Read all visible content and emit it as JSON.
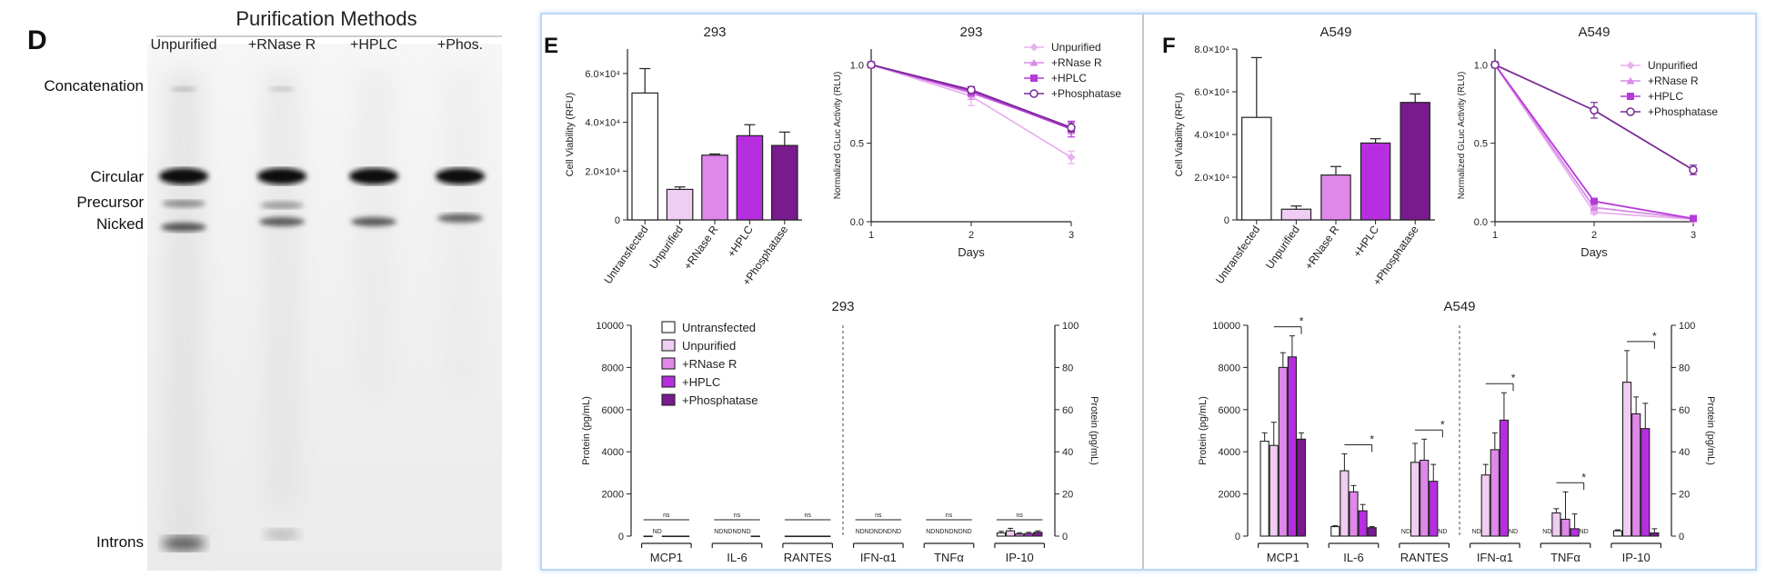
{
  "colors": {
    "Untransfected": "#ffffff",
    "Unpurified": "#f0cdf3",
    "+RNase R": "#df88ea",
    "+HPLC": "#b62ee0",
    "+Phosphatase": "#7a1a8f",
    "line_unpurified": "#e8b2ee",
    "line_rnase": "#d988e6",
    "line_hplc": "#b53ad9",
    "line_phos": "#7a2b93"
  },
  "panel_d": {
    "letter": "D",
    "title": "Purification Methods",
    "lanes": [
      "Unpurified",
      "+RNase R",
      "+HPLC",
      "+Phos."
    ],
    "band_labels": [
      "Concatenation",
      "Circular",
      "Precursor",
      "Nicked",
      "Introns"
    ]
  },
  "panel_e": {
    "letter": "E"
  },
  "panel_f": {
    "letter": "F"
  },
  "chart_data": [
    {
      "id": "e_viability",
      "type": "bar",
      "title": "293",
      "ylabel": "Cell Viability (RFU)",
      "ylim": [
        0,
        70000
      ],
      "ticks": [
        0,
        20000,
        40000,
        60000
      ],
      "tick_labels": [
        "0",
        "2.0×10⁴",
        "4.0×10⁴",
        "6.0×10⁴"
      ],
      "categories": [
        "Untransfected",
        "Unpurified",
        "+RNase R",
        "+HPLC",
        "+Phosphatase"
      ],
      "values": [
        52000,
        12500,
        26500,
        34500,
        30500
      ],
      "errors": [
        10000,
        1000,
        500,
        4500,
        5500
      ]
    },
    {
      "id": "e_gluc",
      "type": "line",
      "title": "293",
      "ylabel": "Normalized GLuc Activity (RLU)",
      "xlabel": "Days",
      "x": [
        1,
        2,
        3
      ],
      "ylim": [
        0,
        1.1
      ],
      "yticks": [
        0.0,
        0.5,
        1.0
      ],
      "series": [
        {
          "name": "Unpurified",
          "values": [
            1.0,
            0.8,
            0.41
          ],
          "errors": [
            0.0,
            0.06,
            0.04
          ]
        },
        {
          "name": "+RNase R",
          "values": [
            1.0,
            0.82,
            0.6
          ],
          "errors": [
            0.0,
            0.04,
            0.04
          ]
        },
        {
          "name": "+HPLC",
          "values": [
            1.0,
            0.83,
            0.59
          ],
          "errors": [
            0.0,
            0.03,
            0.05
          ]
        },
        {
          "name": "+Phosphatase",
          "values": [
            1.0,
            0.84,
            0.6
          ],
          "errors": [
            0.0,
            0.02,
            0.03
          ]
        }
      ]
    },
    {
      "id": "e_cytokine",
      "type": "bar",
      "title": "293",
      "ylabel": "Protein (pg/mL)",
      "ylabel_right": "Protein (pg/mL)",
      "ylim": [
        0,
        10000
      ],
      "yticks": [
        0,
        2000,
        4000,
        6000,
        8000,
        10000
      ],
      "ylim_right": [
        0,
        100
      ],
      "yticks_right": [
        0,
        20,
        40,
        60,
        80,
        100
      ],
      "groups": [
        "MCP1",
        "IL-6",
        "RANTES",
        "IFN-α1",
        "TNFα",
        "IP-10"
      ],
      "series": [
        "Untransfected",
        "Unpurified",
        "+RNase R",
        "+HPLC",
        "+Phosphatase"
      ],
      "values": [
        [
          0,
          null,
          0,
          0,
          0
        ],
        [
          null,
          null,
          null,
          null,
          0
        ],
        [
          0,
          0,
          0,
          0,
          0
        ],
        [
          null,
          null,
          null,
          null,
          null
        ],
        [
          null,
          null,
          null,
          null,
          null
        ],
        [
          1.5,
          2.5,
          1.0,
          1.2,
          1.8
        ]
      ],
      "errors": [
        [
          0,
          0,
          0,
          0,
          0
        ],
        [
          0,
          0,
          0,
          0,
          0
        ],
        [
          0,
          0,
          0,
          0,
          0
        ],
        [
          0,
          0,
          0,
          0,
          0
        ],
        [
          0,
          0,
          0,
          0,
          0
        ],
        [
          0.8,
          1.2,
          0.6,
          0.6,
          0.7
        ]
      ],
      "group_axis": [
        "left",
        "left",
        "left",
        "right",
        "right",
        "right"
      ],
      "nd_label": "ND",
      "sig_label": "ns"
    },
    {
      "id": "f_viability",
      "type": "bar",
      "title": "A549",
      "ylabel": "Cell Viability (RFU)",
      "ylim": [
        0,
        80000
      ],
      "ticks": [
        0,
        20000,
        40000,
        60000,
        80000
      ],
      "tick_labels": [
        "0",
        "2.0×10⁴",
        "4.0×10⁴",
        "6.0×10⁴",
        "8.0×10⁴"
      ],
      "categories": [
        "Untransfected",
        "Unpurified",
        "+RNase R",
        "+HPLC",
        "+Phosphatase"
      ],
      "values": [
        48000,
        5000,
        21000,
        36000,
        55000
      ],
      "errors": [
        28000,
        1500,
        4000,
        2000,
        4000
      ]
    },
    {
      "id": "f_gluc",
      "type": "line",
      "title": "A549",
      "ylabel": "Normalized GLuc Activity (RLU)",
      "xlabel": "Days",
      "x": [
        1,
        2,
        3
      ],
      "ylim": [
        0,
        1.1
      ],
      "yticks": [
        0.0,
        0.5,
        1.0
      ],
      "series": [
        {
          "name": "Unpurified",
          "values": [
            1.0,
            0.06,
            0.015
          ],
          "errors": [
            0.0,
            0.01,
            0.005
          ]
        },
        {
          "name": "+RNase R",
          "values": [
            1.0,
            0.09,
            0.02
          ],
          "errors": [
            0.0,
            0.01,
            0.005
          ]
        },
        {
          "name": "+HPLC",
          "values": [
            1.0,
            0.13,
            0.02
          ],
          "errors": [
            0.0,
            0.015,
            0.005
          ]
        },
        {
          "name": "+Phosphatase",
          "values": [
            1.0,
            0.71,
            0.33
          ],
          "errors": [
            0.0,
            0.05,
            0.03
          ]
        }
      ]
    },
    {
      "id": "f_cytokine",
      "type": "bar",
      "title": "A549",
      "ylabel": "Protein (pg/mL)",
      "ylabel_right": "Protein (pg/mL)",
      "ylim": [
        0,
        10000
      ],
      "yticks": [
        0,
        2000,
        4000,
        6000,
        8000,
        10000
      ],
      "ylim_right": [
        0,
        100
      ],
      "yticks_right": [
        0,
        20,
        40,
        60,
        80,
        100
      ],
      "groups": [
        "MCP1",
        "IL-6",
        "RANTES",
        "IFN-α1",
        "TNFα",
        "IP-10"
      ],
      "series": [
        "Untransfected",
        "Unpurified",
        "+RNase R",
        "+HPLC",
        "+Phosphatase"
      ],
      "values": [
        [
          4500,
          4300,
          8000,
          8500,
          4600
        ],
        [
          450,
          3100,
          2100,
          1200,
          400
        ],
        [
          null,
          3500,
          3600,
          2600,
          null
        ],
        [
          null,
          29,
          41,
          55,
          null
        ],
        [
          null,
          11,
          8,
          3.5,
          null
        ],
        [
          2.5,
          73,
          58,
          51,
          1.5
        ]
      ],
      "errors": [
        [
          400,
          1100,
          700,
          1000,
          300
        ],
        [
          50,
          800,
          300,
          300,
          50
        ],
        [
          0,
          900,
          1000,
          800,
          0
        ],
        [
          0,
          5,
          8,
          13,
          0
        ],
        [
          0,
          2,
          13,
          7,
          0
        ],
        [
          0.5,
          15,
          8,
          12,
          2
        ]
      ],
      "group_axis": [
        "left",
        "left",
        "left",
        "right",
        "right",
        "right"
      ],
      "nd_label": "ND",
      "sig_label": "*"
    }
  ]
}
